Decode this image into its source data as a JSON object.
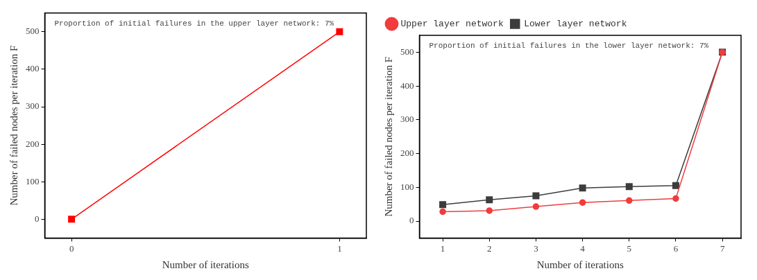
{
  "chart_data": [
    {
      "type": "line",
      "xlabel": "Number of iterations",
      "ylabel": "Number of failed nodes per iteration F",
      "annotations": [
        "Proportion of initial failures in the upper layer network: 7%"
      ],
      "x": [
        0,
        1
      ],
      "xlim": [
        -0.1,
        1.1
      ],
      "xticks": [
        0,
        1
      ],
      "ylim": [
        -50,
        550
      ],
      "yticks": [
        0,
        100,
        200,
        300,
        400,
        500
      ],
      "marker": "square",
      "grid": false,
      "series": [
        {
          "color": "#ff0000",
          "values": [
            0,
            500
          ]
        }
      ]
    },
    {
      "type": "line",
      "xlabel": "Number of iterations",
      "ylabel": "Number of failed nodes per iteration F",
      "annotations": [
        "Proportion of initial failures in the lower layer network: 7%"
      ],
      "x": [
        1,
        2,
        3,
        4,
        5,
        6,
        7
      ],
      "xlim": [
        0.5,
        7.4
      ],
      "xticks": [
        1,
        2,
        3,
        4,
        5,
        6,
        7
      ],
      "ylim": [
        -50,
        550
      ],
      "yticks": [
        0,
        100,
        200,
        300,
        400,
        500
      ],
      "grid": false,
      "legend": "top left",
      "series": [
        {
          "name": "Upper layer network",
          "color": "#f03c3c",
          "marker": "circle",
          "values": [
            28,
            31,
            43,
            55,
            61,
            67,
            500
          ]
        },
        {
          "name": "Lower layer network",
          "color": "#3c3c3c",
          "marker": "square",
          "values": [
            49,
            63,
            75,
            98,
            102,
            105,
            500
          ]
        }
      ]
    }
  ]
}
